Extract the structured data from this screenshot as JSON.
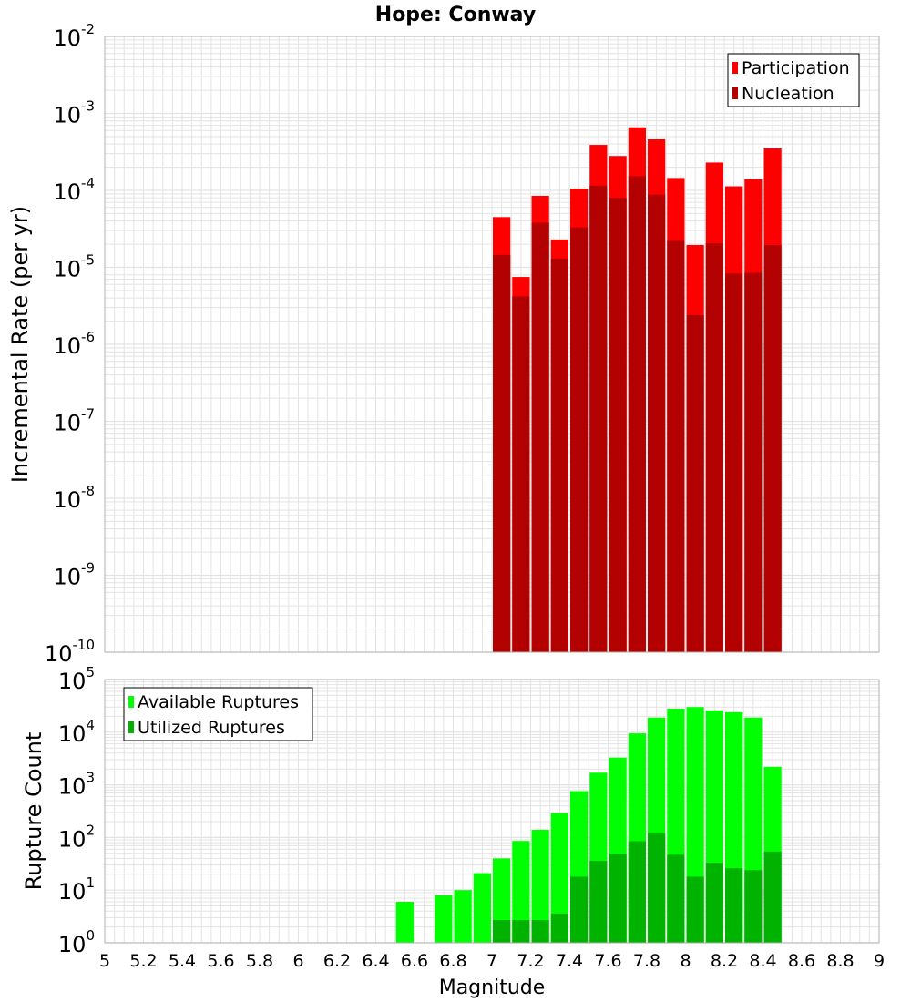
{
  "chart_data": [
    {
      "type": "bar",
      "title": "Hope: Conway",
      "xlabel": "",
      "ylabel": "Incremental Rate (per yr)",
      "yscale": "log",
      "ylim_exp": [
        -10,
        -2
      ],
      "xlim": [
        5,
        9
      ],
      "bar_width": 0.1,
      "grid": true,
      "legend_position": "top-right",
      "x": [
        7.05,
        7.15,
        7.25,
        7.35,
        7.45,
        7.55,
        7.65,
        7.75,
        7.85,
        7.95,
        8.05,
        8.15,
        8.25,
        8.35,
        8.45
      ],
      "series": [
        {
          "name": "Participation",
          "color": "#ff0000",
          "values": [
            4.5e-05,
            7.5e-06,
            8.5e-05,
            2.3e-05,
            0.000105,
            0.00039,
            0.00028,
            0.00066,
            0.00046,
            0.000145,
            1.95e-05,
            0.00023,
            0.000113,
            0.00014,
            0.00035
          ]
        },
        {
          "name": "Nucleation",
          "color": "#b30000",
          "values": [
            1.45e-05,
            4.2e-06,
            3.8e-05,
            1.3e-05,
            3.3e-05,
            0.000115,
            8e-05,
            0.000153,
            8.8e-05,
            2.2e-05,
            2.4e-06,
            2.05e-05,
            8.3e-06,
            8.5e-06,
            1.95e-05
          ]
        }
      ]
    },
    {
      "type": "bar",
      "title": "",
      "xlabel": "Magnitude",
      "ylabel": "Rupture Count",
      "yscale": "log",
      "ylim_exp": [
        0,
        5
      ],
      "xlim": [
        5,
        9
      ],
      "bar_width": 0.1,
      "grid": true,
      "legend_position": "top-left",
      "x": [
        6.55,
        6.65,
        6.75,
        6.85,
        6.95,
        7.05,
        7.15,
        7.25,
        7.35,
        7.45,
        7.55,
        7.65,
        7.75,
        7.85,
        7.95,
        8.05,
        8.15,
        8.25,
        8.35,
        8.45
      ],
      "series": [
        {
          "name": "Available Ruptures",
          "color": "#00ff00",
          "values": [
            6,
            0,
            8,
            10,
            21,
            40,
            86,
            140,
            290,
            760,
            1700,
            3300,
            9500,
            19000,
            28000,
            30000,
            26000,
            24000,
            19000,
            2200
          ]
        },
        {
          "name": "Utilized Ruptures",
          "color": "#00b300",
          "values": [
            0,
            0,
            0,
            0,
            0,
            2.7,
            2.7,
            2.7,
            3.6,
            18,
            36,
            49,
            85,
            120,
            47,
            18,
            33,
            26,
            24,
            54
          ]
        }
      ]
    }
  ],
  "axes": {
    "x_tick_labels": [
      "5",
      "5.2",
      "5.4",
      "5.6",
      "5.8",
      "6",
      "6.2",
      "6.4",
      "6.6",
      "6.8",
      "7",
      "7.2",
      "7.4",
      "7.6",
      "7.8",
      "8",
      "8.2",
      "8.4",
      "8.6",
      "8.8",
      "9"
    ],
    "x_tick_values": [
      5,
      5.2,
      5.4,
      5.6,
      5.8,
      6,
      6.2,
      6.4,
      6.6,
      6.8,
      7,
      7.2,
      7.4,
      7.6,
      7.8,
      8,
      8.2,
      8.4,
      8.6,
      8.8,
      9
    ],
    "top_y_ticks": [
      {
        "base": "10",
        "exp": "-2"
      },
      {
        "base": "10",
        "exp": "-3"
      },
      {
        "base": "10",
        "exp": "-4"
      },
      {
        "base": "10",
        "exp": "-5"
      },
      {
        "base": "10",
        "exp": "-6"
      },
      {
        "base": "10",
        "exp": "-7"
      },
      {
        "base": "10",
        "exp": "-8"
      },
      {
        "base": "10",
        "exp": "-9"
      },
      {
        "base": "10",
        "exp": "-10"
      }
    ],
    "bottom_y_ticks": [
      {
        "base": "10",
        "exp": "5"
      },
      {
        "base": "10",
        "exp": "4"
      },
      {
        "base": "10",
        "exp": "3"
      },
      {
        "base": "10",
        "exp": "2"
      },
      {
        "base": "10",
        "exp": "1"
      },
      {
        "base": "10",
        "exp": "0"
      }
    ]
  },
  "colors": {
    "grid": "#e3e3e3",
    "frame": "#b0b0b0",
    "bar_edge": "#ffffff",
    "text": "#000000"
  }
}
